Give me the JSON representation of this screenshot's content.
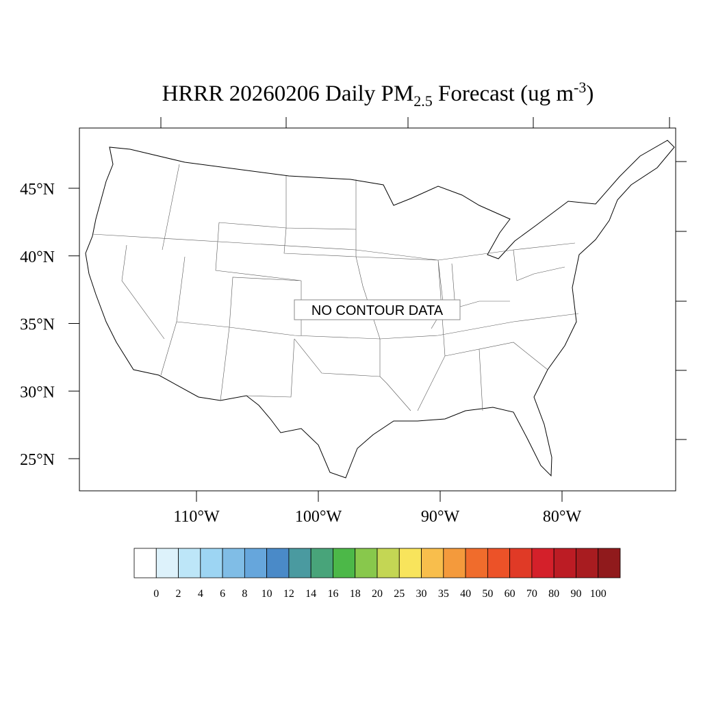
{
  "title": {
    "main": "HRRR 20260206 Daily PM",
    "sub": "2.5",
    "mid": " Forecast (ug m",
    "sup": "-3",
    "end": ")"
  },
  "latitudes": [
    {
      "value": 45,
      "label": "45°N"
    },
    {
      "value": 40,
      "label": "40°N"
    },
    {
      "value": 35,
      "label": "35°N"
    },
    {
      "value": 30,
      "label": "30°N"
    },
    {
      "value": 25,
      "label": "25°N"
    }
  ],
  "longitudes": [
    {
      "value": -110,
      "label": "110°W"
    },
    {
      "value": -100,
      "label": "100°W"
    },
    {
      "value": -90,
      "label": "90°W"
    },
    {
      "value": -80,
      "label": "80°W"
    }
  ],
  "message": "NO CONTOUR DATA",
  "colorbar": {
    "levels": [
      0,
      2,
      4,
      6,
      8,
      10,
      12,
      14,
      16,
      18,
      20,
      25,
      30,
      35,
      40,
      50,
      60,
      70,
      80,
      90,
      100
    ],
    "colors": [
      "#ffffff",
      "#ddf2fb",
      "#bde6f8",
      "#9dd5f3",
      "#80bde6",
      "#66a6dc",
      "#4a8ac8",
      "#4a9aa0",
      "#48a47a",
      "#4cb848",
      "#88c84c",
      "#c4d654",
      "#f8e45c",
      "#f8be4c",
      "#f49a3c",
      "#f06c2c",
      "#ec5228",
      "#e03a26",
      "#d4202a",
      "#bc1c24",
      "#a81c20",
      "#901a1c"
    ]
  }
}
